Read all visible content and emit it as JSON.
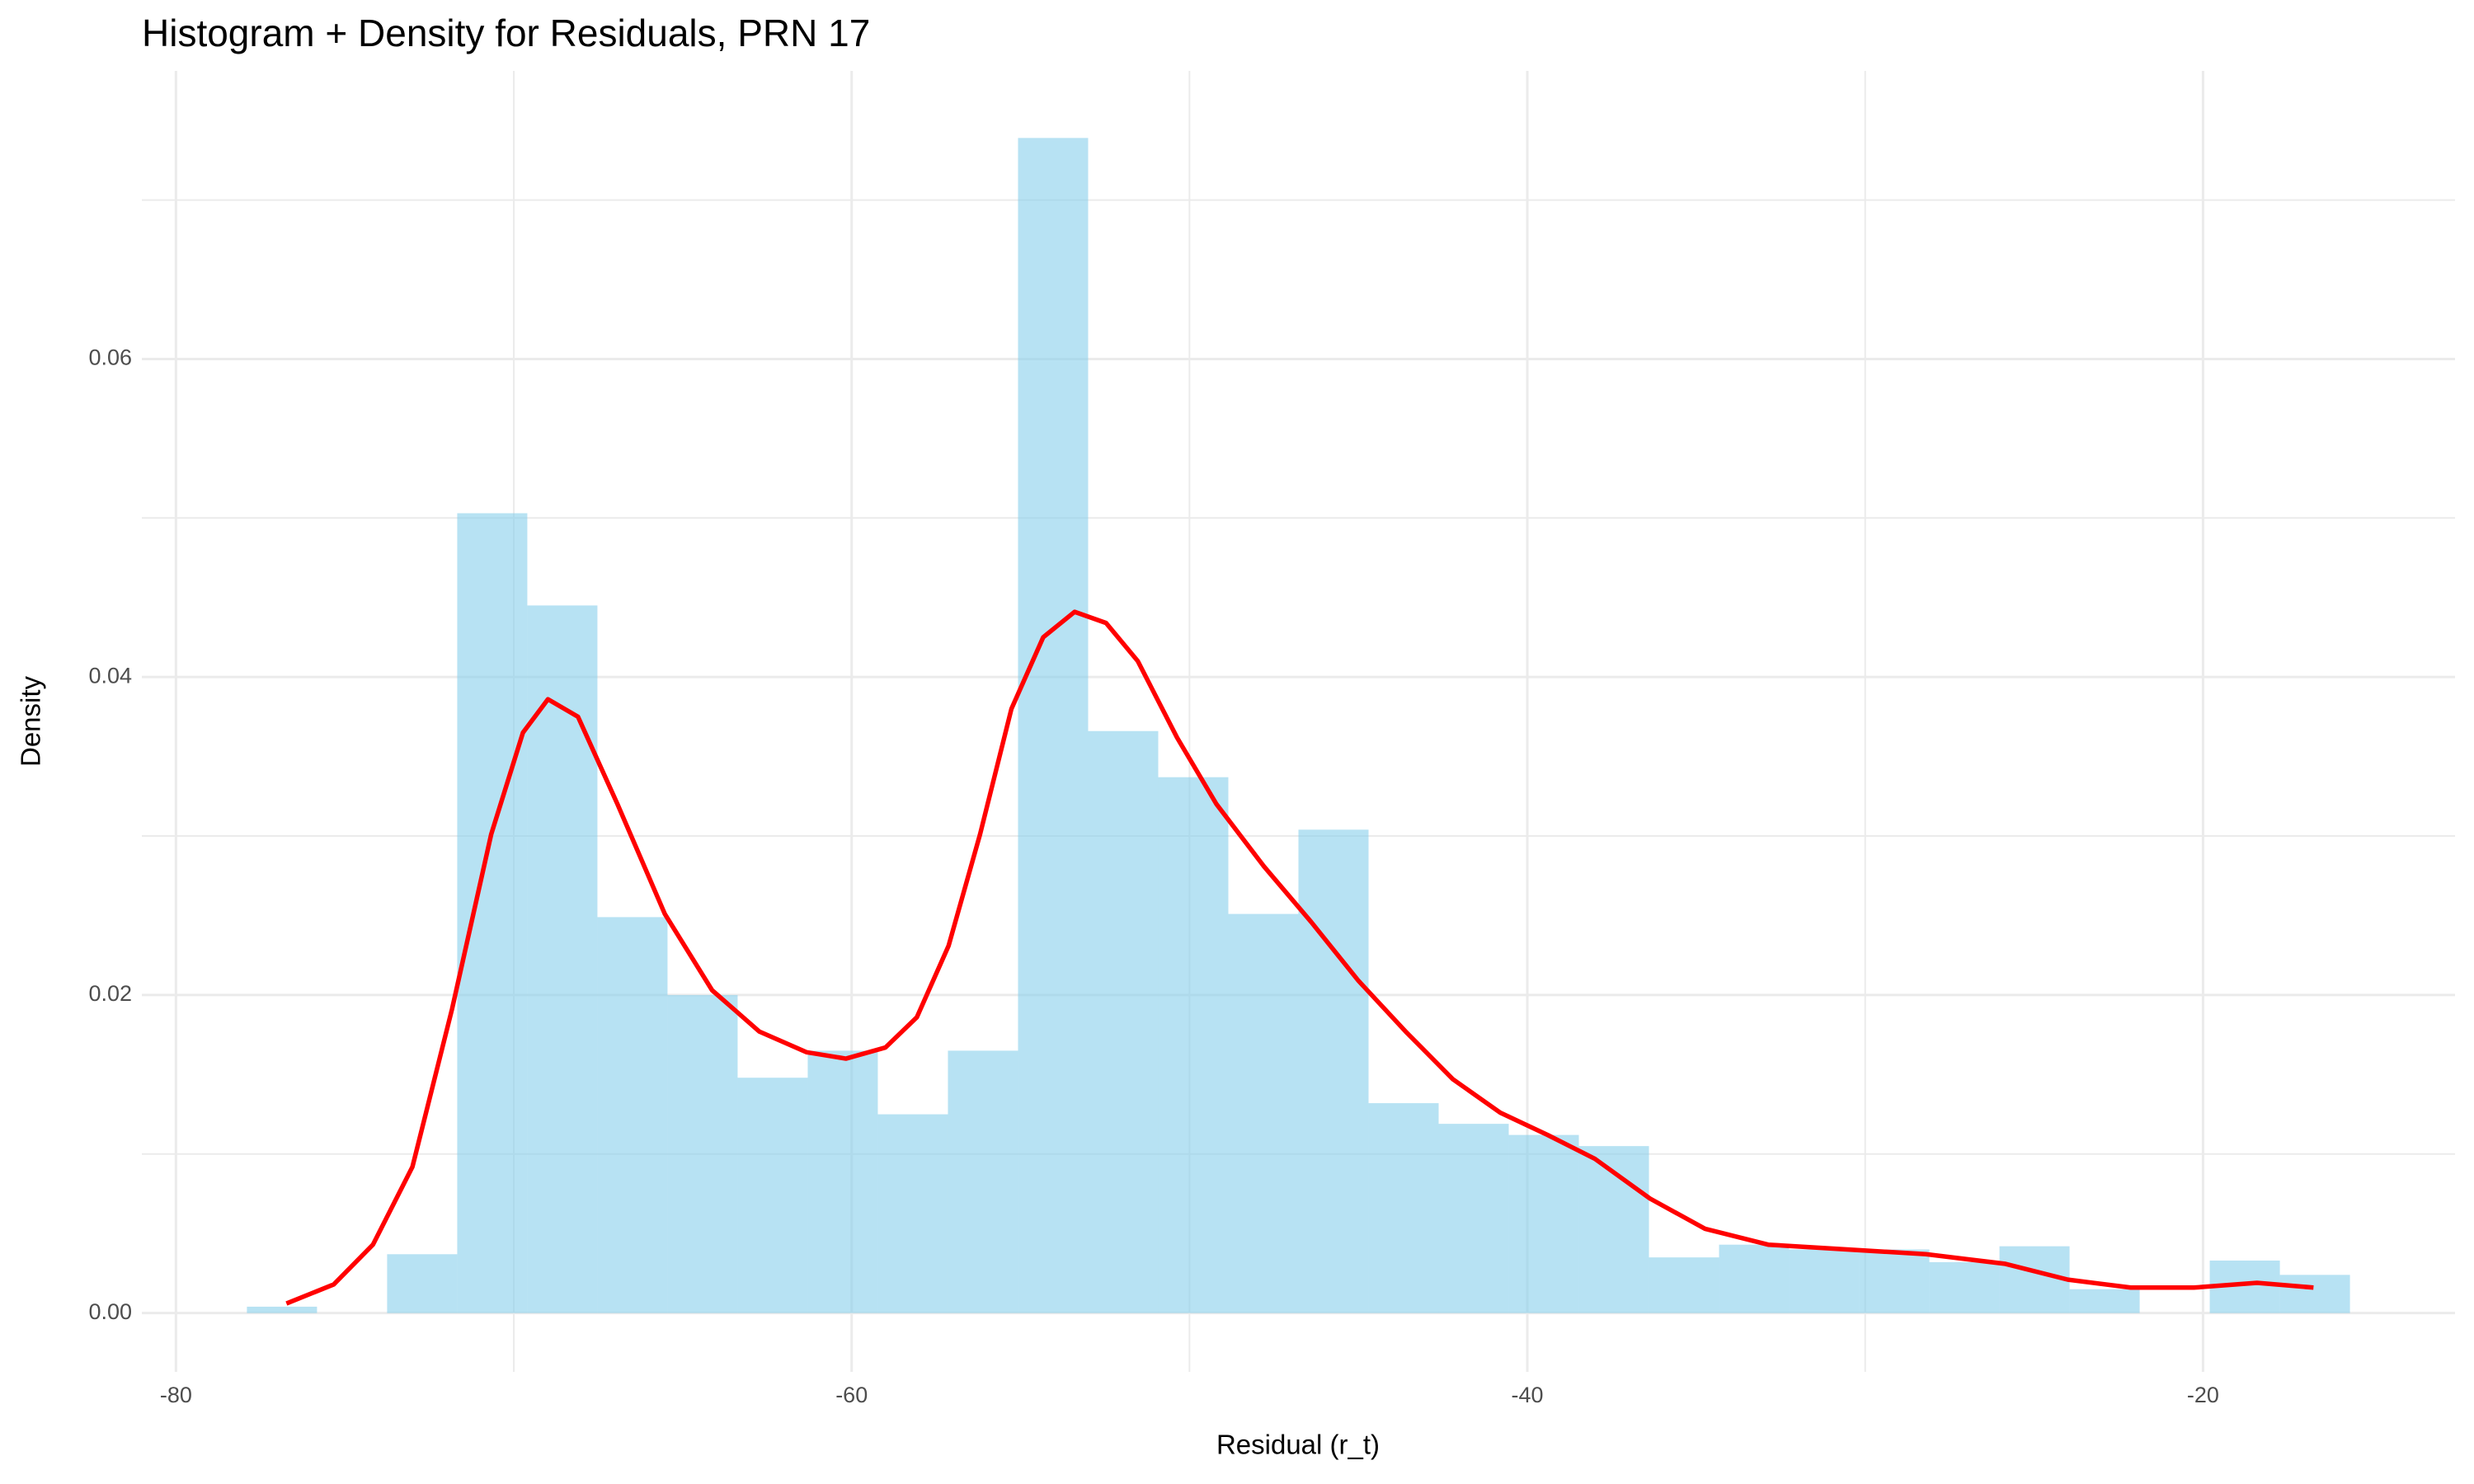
{
  "chart_data": {
    "type": "histogram",
    "title": "Histogram + Density for Residuals, PRN 17",
    "x_label": "Residual (r_t)",
    "y_label": "Density",
    "bins": [
      -77.9,
      -75.825,
      -73.75,
      -71.675,
      -69.6,
      -67.525,
      -65.45,
      -63.375,
      -61.3,
      -59.225,
      -57.15,
      -55.075,
      -53.0,
      -50.925,
      -48.85,
      -46.775,
      -44.7,
      -42.625,
      -40.55,
      -38.475,
      -36.4,
      -34.325,
      -32.25,
      -30.175,
      -28.1,
      -26.025,
      -23.95,
      -21.875,
      -19.8,
      -17.725,
      -15.65
    ],
    "values": [
      0.0004,
      0,
      0.0037,
      0.0503,
      0.0445,
      0.0249,
      0.02,
      0.0148,
      0.0165,
      0.0125,
      0.0165,
      0.0739,
      0.0366,
      0.0337,
      0.0251,
      0.0304,
      0.0132,
      0.0119,
      0.0112,
      0.0105,
      0.0035,
      0.0043,
      0.004,
      0.004,
      0.0032,
      0.0042,
      0.0015,
      0,
      0.0033,
      0.0024
    ],
    "color": "#87ceeb",
    "density": {
      "color": "#ff0000",
      "x": [
        -76.73,
        -75.33,
        -74.17,
        -73.0,
        -71.83,
        -70.67,
        -69.73,
        -68.99,
        -68.1,
        -66.93,
        -65.53,
        -64.13,
        -62.73,
        -61.33,
        -60.17,
        -59.0,
        -58.07,
        -57.13,
        -56.2,
        -55.27,
        -54.33,
        -53.4,
        -52.47,
        -51.53,
        -50.37,
        -49.2,
        -47.8,
        -46.4,
        -45.0,
        -43.6,
        -42.2,
        -40.8,
        -39.4,
        -38.0,
        -36.37,
        -34.74,
        -32.87,
        -30.54,
        -28.2,
        -25.87,
        -24.0,
        -22.14,
        -20.27,
        -18.4,
        -16.73
      ],
      "y": [
        0.0006,
        0.0018,
        0.0043,
        0.0092,
        0.0191,
        0.0301,
        0.0365,
        0.0386,
        0.0375,
        0.032,
        0.0251,
        0.0203,
        0.0177,
        0.0164,
        0.016,
        0.0167,
        0.0186,
        0.0231,
        0.0301,
        0.038,
        0.0425,
        0.0441,
        0.0434,
        0.041,
        0.0362,
        0.032,
        0.0281,
        0.0246,
        0.0209,
        0.0177,
        0.0147,
        0.0126,
        0.0112,
        0.0097,
        0.0072,
        0.0053,
        0.0043,
        0.004,
        0.0037,
        0.0031,
        0.0021,
        0.0016,
        0.0016,
        0.0019,
        0.0016
      ]
    },
    "xlim": [
      -81.01,
      -12.54
    ],
    "ylim": [
      -0.0037,
      0.0776
    ],
    "xticks": [
      -80,
      -60,
      -40,
      -20
    ],
    "yticks": [
      {
        "value": 0,
        "label": "0.00"
      },
      {
        "value": 0.02,
        "label": "0.02"
      },
      {
        "value": 0.04,
        "label": "0.04"
      },
      {
        "value": 0.06,
        "label": "0.06"
      }
    ],
    "grid": true
  }
}
